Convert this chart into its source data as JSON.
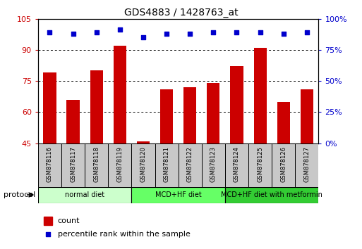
{
  "title": "GDS4883 / 1428763_at",
  "samples": [
    "GSM878116",
    "GSM878117",
    "GSM878118",
    "GSM878119",
    "GSM878120",
    "GSM878121",
    "GSM878122",
    "GSM878123",
    "GSM878124",
    "GSM878125",
    "GSM878126",
    "GSM878127"
  ],
  "counts": [
    79,
    66,
    80,
    92,
    46,
    71,
    72,
    74,
    82,
    91,
    65,
    71
  ],
  "percentile_ranks": [
    89,
    88,
    89,
    91,
    85,
    88,
    88,
    89,
    89,
    89,
    88,
    89
  ],
  "bar_color": "#cc0000",
  "dot_color": "#0000cc",
  "ylim_left": [
    45,
    105
  ],
  "ylim_right": [
    0,
    100
  ],
  "yticks_left": [
    45,
    60,
    75,
    90,
    105
  ],
  "yticks_right": [
    0,
    25,
    50,
    75,
    100
  ],
  "ytick_labels_right": [
    "0%",
    "25%",
    "50%",
    "75%",
    "100%"
  ],
  "grid_yticks": [
    60,
    75,
    90
  ],
  "groups": [
    {
      "label": "normal diet",
      "indices": [
        0,
        1,
        2,
        3
      ],
      "color": "#ccffcc"
    },
    {
      "label": "MCD+HF diet",
      "indices": [
        4,
        5,
        6,
        7
      ],
      "color": "#66ff66"
    },
    {
      "label": "MCD+HF diet with metformin",
      "indices": [
        8,
        9,
        10,
        11
      ],
      "color": "#33cc33"
    }
  ],
  "protocol_label": "protocol",
  "legend_count_label": "count",
  "legend_percentile_label": "percentile rank within the sample",
  "bar_width": 0.55,
  "left_tick_color": "#cc0000",
  "right_tick_color": "#0000cc",
  "sample_box_color": "#c8c8c8",
  "title_fontsize": 10,
  "tick_fontsize": 8,
  "legend_fontsize": 8
}
